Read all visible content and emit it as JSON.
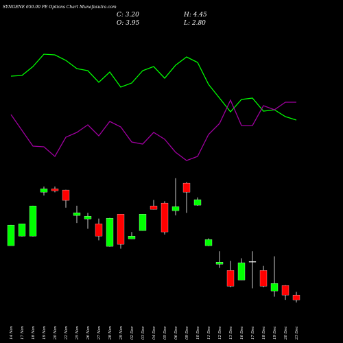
{
  "chart_data": {
    "type": "candlestick",
    "title": "SYNGENE 650.00 PE Options Chart Munafasutra.com",
    "summary": [
      "C: 3.20",
      "H: 4.45",
      "O: 3.95",
      "L: 2.80"
    ],
    "categories": [
      "14 Nov",
      "17 Nov",
      "18 Nov",
      "19 Nov",
      "20 Nov",
      "22 Nov",
      "25 Nov",
      "26 Nov",
      "27 Nov",
      "28 Nov",
      "29 Nov",
      "02 Dec",
      "03 Dec",
      "04 Dec",
      "05 Dec",
      "06 Dec",
      "09 Dec",
      "10 Dec",
      "11 Dec",
      "12 Dec",
      "13 Dec",
      "16 Dec",
      "17 Dec",
      "18 Dec",
      "19 Dec",
      "20 Dec",
      "23 Dec"
    ],
    "open": [
      11.66,
      13.16,
      13.16,
      20.02,
      20.56,
      20.35,
      16.38,
      15.84,
      15.09,
      11.56,
      16.59,
      12.73,
      14.02,
      17.88,
      18.31,
      17.13,
      21.42,
      17.99,
      11.66,
      8.77,
      7.8,
      6.3,
      9.2,
      7.8,
      4.59,
      5.45,
      3.95
    ],
    "high": [
      14.9,
      15.1,
      17.9,
      20.9,
      20.9,
      20.4,
      17.9,
      16.8,
      15.9,
      16.0,
      16.6,
      13.8,
      16.6,
      18.8,
      18.6,
      22.2,
      21.6,
      19.2,
      12.8,
      10.8,
      9.3,
      9.7,
      10.8,
      8.5,
      10.0,
      5.5,
      4.45
    ],
    "low": [
      11.7,
      13.1,
      13.1,
      19.5,
      20.0,
      17.6,
      15.2,
      14.3,
      12.5,
      11.5,
      11.2,
      12.7,
      14.0,
      17.3,
      13.4,
      16.4,
      16.8,
      17.9,
      11.6,
      8.2,
      5.2,
      6.3,
      5.0,
      5.2,
      3.7,
      3.2,
      2.8
    ],
    "close": [
      14.88,
      15.09,
      17.88,
      20.56,
      20.24,
      18.74,
      16.81,
      16.27,
      13.16,
      15.95,
      11.88,
      13.16,
      16.59,
      17.34,
      13.81,
      17.77,
      20.02,
      18.85,
      12.63,
      9.09,
      5.34,
      9.0,
      9.2,
      5.34,
      5.77,
      3.95,
      3.2
    ],
    "up_color": "#00ff00",
    "down_color": "#ff0000",
    "flat_color": "#ffffff",
    "ylim": [
      0,
      22.5
    ],
    "indicators": {
      "ylim": [
        0,
        250
      ],
      "series": [
        {
          "color": "#00ff00",
          "values": [
            139,
            140,
            153,
            171,
            170,
            162,
            150,
            147,
            130,
            145,
            123,
            129,
            147,
            153,
            136,
            155,
            167,
            159,
            127,
            107,
            87,
            105,
            107,
            88,
            90,
            80,
            75
          ]
        },
        {
          "color": "#a000a0",
          "values": [
            83,
            60,
            37,
            36,
            22,
            50,
            57,
            68,
            52,
            73,
            65,
            43,
            40,
            57,
            47,
            28,
            16,
            22,
            54,
            70,
            104,
            67,
            67,
            96,
            90,
            101,
            101
          ]
        }
      ]
    }
  }
}
